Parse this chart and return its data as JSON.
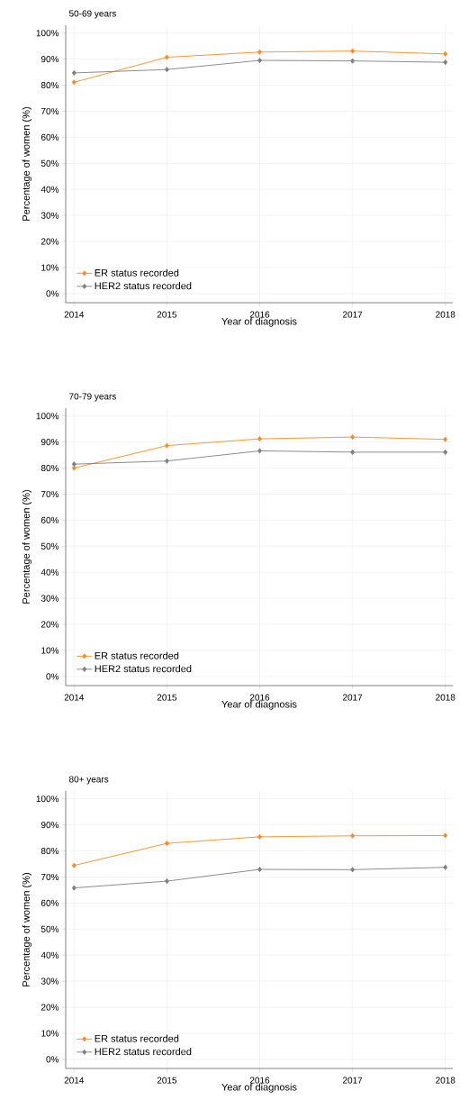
{
  "chart_data": [
    {
      "type": "line",
      "title": "50-69 years",
      "xlabel": "Year of diagnosis",
      "ylabel": "Percentage of women (%)",
      "x": [
        2014,
        2015,
        2016,
        2017,
        2018
      ],
      "xlim": [
        2013.91,
        2018.08
      ],
      "ylim": [
        -3.5,
        103
      ],
      "xticks": [
        2014,
        2015,
        2016,
        2017,
        2018
      ],
      "yticks": [
        {
          "value": 0,
          "label": "0%"
        },
        {
          "value": 10,
          "label": "10%"
        },
        {
          "value": 20,
          "label": "20%"
        },
        {
          "value": 30,
          "label": "30%"
        },
        {
          "value": 40,
          "label": "40%"
        },
        {
          "value": 50,
          "label": "50%"
        },
        {
          "value": 60,
          "label": "60%"
        },
        {
          "value": 70,
          "label": "70%"
        },
        {
          "value": 80,
          "label": "80%"
        },
        {
          "value": 90,
          "label": "90%"
        },
        {
          "value": 100,
          "label": "100%"
        }
      ],
      "grid": true,
      "legend": "bottom left",
      "marker": "diamond",
      "line_style": "solid",
      "series": [
        {
          "name": "ER status recorded",
          "color": "#ff8a1c",
          "values": [
            81.1,
            90.7,
            92.7,
            93.1,
            92.0
          ]
        },
        {
          "name": "HER2 status recorded",
          "color": "#808080",
          "values": [
            84.7,
            86.0,
            89.5,
            89.3,
            88.8
          ]
        }
      ]
    },
    {
      "type": "line",
      "title": "70-79 years",
      "xlabel": "Year of diagnosis",
      "ylabel": "Percentage of women (%)",
      "x": [
        2014,
        2015,
        2016,
        2017,
        2018
      ],
      "xlim": [
        2013.91,
        2018.08
      ],
      "ylim": [
        -3.5,
        103
      ],
      "xticks": [
        2014,
        2015,
        2016,
        2017,
        2018
      ],
      "yticks": [
        {
          "value": 0,
          "label": "0%"
        },
        {
          "value": 10,
          "label": "10%"
        },
        {
          "value": 20,
          "label": "20%"
        },
        {
          "value": 30,
          "label": "30%"
        },
        {
          "value": 40,
          "label": "40%"
        },
        {
          "value": 50,
          "label": "50%"
        },
        {
          "value": 60,
          "label": "60%"
        },
        {
          "value": 70,
          "label": "70%"
        },
        {
          "value": 80,
          "label": "80%"
        },
        {
          "value": 90,
          "label": "90%"
        },
        {
          "value": 100,
          "label": "100%"
        }
      ],
      "grid": true,
      "legend": "bottom left",
      "marker": "diamond",
      "line_style": "solid",
      "series": [
        {
          "name": "ER status recorded",
          "color": "#ff8a1c",
          "values": [
            80.0,
            88.6,
            91.2,
            91.9,
            91.0
          ]
        },
        {
          "name": "HER2 status recorded",
          "color": "#808080",
          "values": [
            81.5,
            82.7,
            86.6,
            86.1,
            86.1
          ]
        }
      ]
    },
    {
      "type": "line",
      "title": "80+ years",
      "xlabel": "Year of diagnosis",
      "ylabel": "Percentage of women (%)",
      "x": [
        2014,
        2015,
        2016,
        2017,
        2018
      ],
      "xlim": [
        2013.91,
        2018.08
      ],
      "ylim": [
        -3.5,
        103
      ],
      "xticks": [
        2014,
        2015,
        2016,
        2017,
        2018
      ],
      "yticks": [
        {
          "value": 0,
          "label": "0%"
        },
        {
          "value": 10,
          "label": "10%"
        },
        {
          "value": 20,
          "label": "20%"
        },
        {
          "value": 30,
          "label": "30%"
        },
        {
          "value": 40,
          "label": "40%"
        },
        {
          "value": 50,
          "label": "50%"
        },
        {
          "value": 60,
          "label": "60%"
        },
        {
          "value": 70,
          "label": "70%"
        },
        {
          "value": 80,
          "label": "80%"
        },
        {
          "value": 90,
          "label": "90%"
        },
        {
          "value": 100,
          "label": "100%"
        }
      ],
      "grid": true,
      "legend": "bottom left",
      "marker": "diamond",
      "line_style": "solid",
      "series": [
        {
          "name": "ER status recorded",
          "color": "#ff8a1c",
          "values": [
            74.4,
            82.9,
            85.4,
            85.8,
            85.9
          ]
        },
        {
          "name": "HER2 status recorded",
          "color": "#808080",
          "values": [
            65.8,
            68.4,
            72.9,
            72.8,
            73.7
          ]
        }
      ]
    }
  ]
}
